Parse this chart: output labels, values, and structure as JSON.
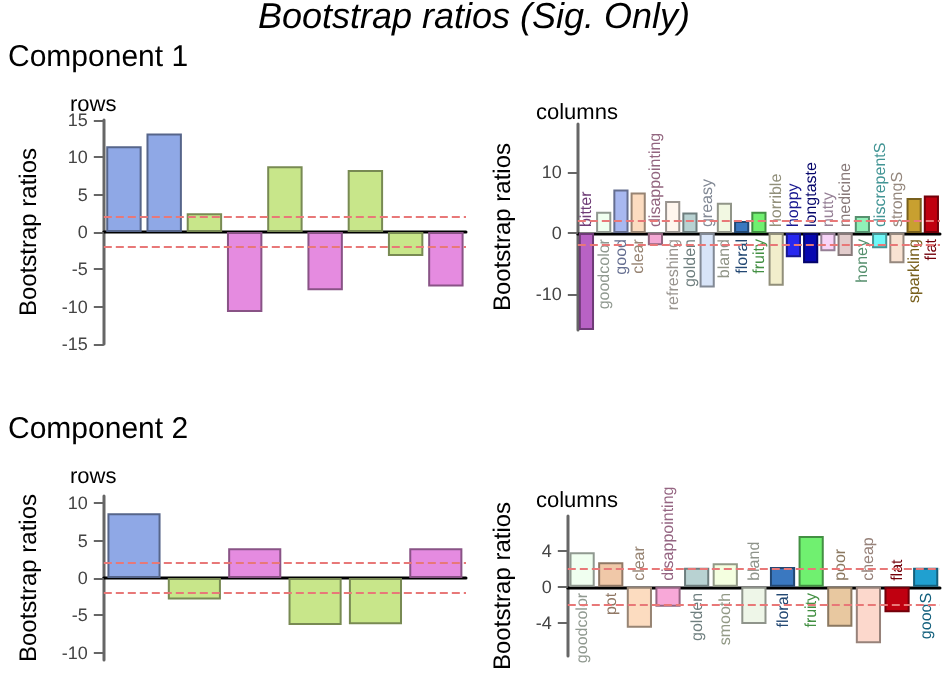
{
  "chart_data": [
    {
      "type": "bar",
      "title": "rows",
      "ylabel": "Bootstrap ratios",
      "annotations": [
        "Bootstrap ratios (Sig. Only)",
        "Component 1"
      ],
      "categories": [
        null,
        null,
        null,
        null,
        null,
        null,
        null,
        null,
        null
      ],
      "values": [
        11.5,
        13.2,
        2.5,
        -10.7,
        8.8,
        -7.8,
        8.3,
        -3.2,
        -7.3
      ],
      "colors": [
        "#8fa8e6",
        "#8fa8e6",
        "#c8e68a",
        "#e58be0",
        "#c8e68a",
        "#e58be0",
        "#c8e68a",
        "#c8e68a",
        "#e58be0"
      ],
      "ylim": [
        -15,
        15
      ],
      "yticks": [
        -15,
        -10,
        -5,
        0,
        5,
        10,
        15
      ],
      "ref_lines": [
        {
          "axis": "y",
          "value": 2,
          "color": "#e87878",
          "line_style": "dashed"
        },
        {
          "axis": "y",
          "value": -2,
          "color": "#e87878",
          "line_style": "dashed"
        }
      ]
    },
    {
      "type": "bar",
      "title": "columns",
      "ylabel": "Bootstrap ratios",
      "categories": [
        "bitter",
        "goodcolor",
        "good",
        "clear",
        "disappointing",
        "refreshing",
        "golden",
        "greasy",
        "bland",
        "floral",
        "fruity",
        "horrible",
        "hoppy",
        "longtaste",
        "nutty",
        "medicine",
        "honey",
        "discrepentS",
        "strongS",
        "sparkling",
        "flat"
      ],
      "values": [
        -16,
        3.5,
        7.2,
        6.7,
        -2,
        5.3,
        3.4,
        -9,
        5,
        2,
        3.5,
        -8.7,
        -4,
        -5,
        -3,
        -3.8,
        2.8,
        -2.5,
        -5,
        5.8,
        6.2
      ],
      "colors": [
        "#b862c4",
        "#f0fff0",
        "#a8b8f0",
        "#fcdcc0",
        "#f4a8d4",
        "#fff6ee",
        "#b8d2d2",
        "#d8e4f8",
        "#f2f8e2",
        "#3a78c0",
        "#70f070",
        "#f2eecc",
        "#2828f0",
        "#0808b0",
        "#f8d4f8",
        "#e2cccc",
        "#90f0b8",
        "#70f8f8",
        "#f8e2d2",
        "#c8a030",
        "#c00010"
      ],
      "ylim": [
        -16,
        18
      ],
      "yticks": [
        -10,
        0,
        10
      ],
      "ref_lines": [
        {
          "axis": "y",
          "value": 2,
          "color": "#e87878",
          "line_style": "dashed"
        },
        {
          "axis": "y",
          "value": -2,
          "color": "#e87878",
          "line_style": "dashed"
        }
      ]
    },
    {
      "type": "bar",
      "title": "rows",
      "ylabel": "Bootstrap ratios",
      "annotations": [
        "Component 2"
      ],
      "categories": [
        null,
        null,
        null,
        null,
        null,
        null
      ],
      "values": [
        8.7,
        -2.9,
        4,
        -6.3,
        -6.2,
        4
      ],
      "colors": [
        "#8fa8e6",
        "#c8e68a",
        "#e58be0",
        "#c8e68a",
        "#c8e68a",
        "#e58be0"
      ],
      "ylim": [
        -11,
        11
      ],
      "yticks": [
        -10,
        -5,
        0,
        5,
        10
      ],
      "ref_lines": [
        {
          "axis": "y",
          "value": 2,
          "color": "#e87878",
          "line_style": "dashed"
        },
        {
          "axis": "y",
          "value": -2,
          "color": "#e87878",
          "line_style": "dashed"
        }
      ]
    },
    {
      "type": "bar",
      "title": "columns",
      "ylabel": "Bootstrap ratios",
      "categories": [
        "goodcolor",
        "pot",
        "clear",
        "disappointing",
        "golden",
        "smooth",
        "bland",
        "floral",
        "fruity",
        "poor",
        "cheap",
        "flat",
        "goodS"
      ],
      "values": [
        3.8,
        2.7,
        -4.5,
        -2.2,
        2.1,
        2.6,
        -4.1,
        2.2,
        5.6,
        -4.4,
        -6.2,
        -2.8,
        2.1
      ],
      "colors": [
        "#f0fff0",
        "#f0c8a8",
        "#fcdcc0",
        "#f8a8d8",
        "#b8d2d2",
        "#f4ffe0",
        "#eef6e8",
        "#3a78c0",
        "#70f070",
        "#e8c8a0",
        "#fcd8cc",
        "#c00010",
        "#20a0d0"
      ],
      "ylim": [
        -7.6,
        7.8
      ],
      "yticks": [
        -4,
        0,
        4
      ],
      "ref_lines": [
        {
          "axis": "y",
          "value": 2,
          "color": "#e87878",
          "line_style": "dashed"
        },
        {
          "axis": "y",
          "value": -2,
          "color": "#e87878",
          "line_style": "dashed"
        }
      ]
    }
  ]
}
